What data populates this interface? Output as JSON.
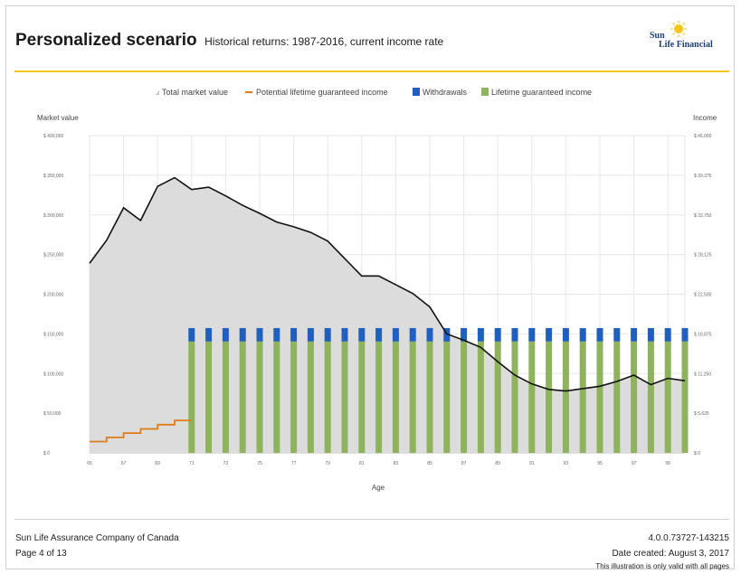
{
  "header": {
    "title": "Personalized scenario",
    "subtitle": "Historical returns: 1987-2016, current income rate"
  },
  "logo": {
    "line1": "Sun",
    "line2": "Life Financial"
  },
  "footer": {
    "company": "Sun Life Assurance Company of Canada",
    "page": "Page 4 of 13",
    "version": "4.0.0.73727-143215",
    "date_created": "Date created: August 3, 2017",
    "validity": "This illustration is only valid with all pages"
  },
  "colors": {
    "accent": "#f5c518",
    "market_fill": "#dcdcdc",
    "market_line": "#111111",
    "potential_line": "#e07b1a",
    "withdrawals": "#1f5fbf",
    "lifetime_income": "#8fb35c",
    "grid": "#e6e6e6"
  },
  "chart_data": {
    "type": "bar",
    "title": "",
    "legend": [
      {
        "label": "Total market value",
        "key": "market"
      },
      {
        "label": "Potential lifetime guaranteed income",
        "key": "potential"
      },
      {
        "label": "Withdrawals",
        "key": "withdrawals"
      },
      {
        "label": "Lifetime guaranteed income",
        "key": "lifetime"
      }
    ],
    "legend_position": "top-center",
    "xlabel": "Age",
    "ylabel_left": "Market value",
    "ylabel_right": "Income",
    "x_ticks": [
      "65",
      "67",
      "69",
      "71",
      "73",
      "75",
      "77",
      "79",
      "81",
      "83",
      "85",
      "87",
      "89",
      "91",
      "93",
      "95",
      "97",
      "99"
    ],
    "xlim": [
      65,
      100
    ],
    "ylim_left": [
      0,
      400000
    ],
    "ylim_right": [
      0,
      45000
    ],
    "y_ticks_left": [
      "$ 0",
      "$ 50,000",
      "$ 100,000",
      "$ 150,000",
      "$ 200,000",
      "$ 250,000",
      "$ 300,000",
      "$ 350,000",
      "$ 400,000"
    ],
    "y_ticks_right": [
      "$ 0",
      "$ 5,625",
      "$ 11,250",
      "$ 16,875",
      "$ 22,500",
      "$ 28,125",
      "$ 33,750",
      "$ 39,375",
      "$ 45,000"
    ],
    "grid": true,
    "series": [
      {
        "name": "Total market value",
        "type": "area",
        "x": [
          65,
          66,
          67,
          68,
          69,
          70,
          71,
          72,
          73,
          74,
          75,
          76,
          77,
          78,
          79,
          80,
          81,
          82,
          83,
          84,
          85,
          86,
          87,
          88,
          89,
          90,
          91,
          92,
          93,
          94,
          95,
          96,
          97,
          98,
          99,
          100
        ],
        "values": [
          239000,
          268000,
          309000,
          293000,
          336000,
          347000,
          332000,
          335000,
          324000,
          312000,
          302000,
          291000,
          285000,
          278000,
          267000,
          245000,
          223000,
          223000,
          212000,
          201000,
          184000,
          150000,
          142000,
          133000,
          115000,
          98000,
          87000,
          80000,
          78000,
          81000,
          84000,
          90000,
          98000,
          86000,
          94000,
          91000
        ]
      },
      {
        "name": "Potential lifetime guaranteed income",
        "type": "step",
        "x": [
          65,
          66,
          67,
          68,
          69,
          70,
          71
        ],
        "values": [
          1600,
          2200,
          2800,
          3400,
          4000,
          4600,
          4600
        ]
      },
      {
        "name": "Lifetime guaranteed income",
        "type": "bar",
        "x": [
          71,
          72,
          73,
          74,
          75,
          76,
          77,
          78,
          79,
          80,
          81,
          82,
          83,
          84,
          85,
          86,
          87,
          88,
          89,
          90,
          91,
          92,
          93,
          94,
          95,
          96,
          97,
          98,
          99,
          100
        ],
        "values": [
          15800,
          15800,
          15800,
          15800,
          15800,
          15800,
          15800,
          15800,
          15800,
          15800,
          15800,
          15800,
          15800,
          15800,
          15800,
          15800,
          15800,
          15800,
          15800,
          15800,
          15800,
          15800,
          15800,
          15800,
          15800,
          15800,
          15800,
          15800,
          15800,
          15800
        ]
      },
      {
        "name": "Withdrawals",
        "type": "bar",
        "x": [
          71,
          72,
          73,
          74,
          75,
          76,
          77,
          78,
          79,
          80,
          81,
          82,
          83,
          84,
          85,
          86,
          87,
          88,
          89,
          90,
          91,
          92,
          93,
          94,
          95,
          96,
          97,
          98,
          99,
          100
        ],
        "values": [
          1900,
          1900,
          1900,
          1900,
          1900,
          1900,
          1900,
          1900,
          1900,
          1900,
          1900,
          1900,
          1900,
          1900,
          1900,
          1900,
          1900,
          1900,
          1900,
          1900,
          1900,
          1900,
          1900,
          1900,
          1900,
          1900,
          1900,
          1900,
          1900,
          1900
        ]
      }
    ]
  }
}
